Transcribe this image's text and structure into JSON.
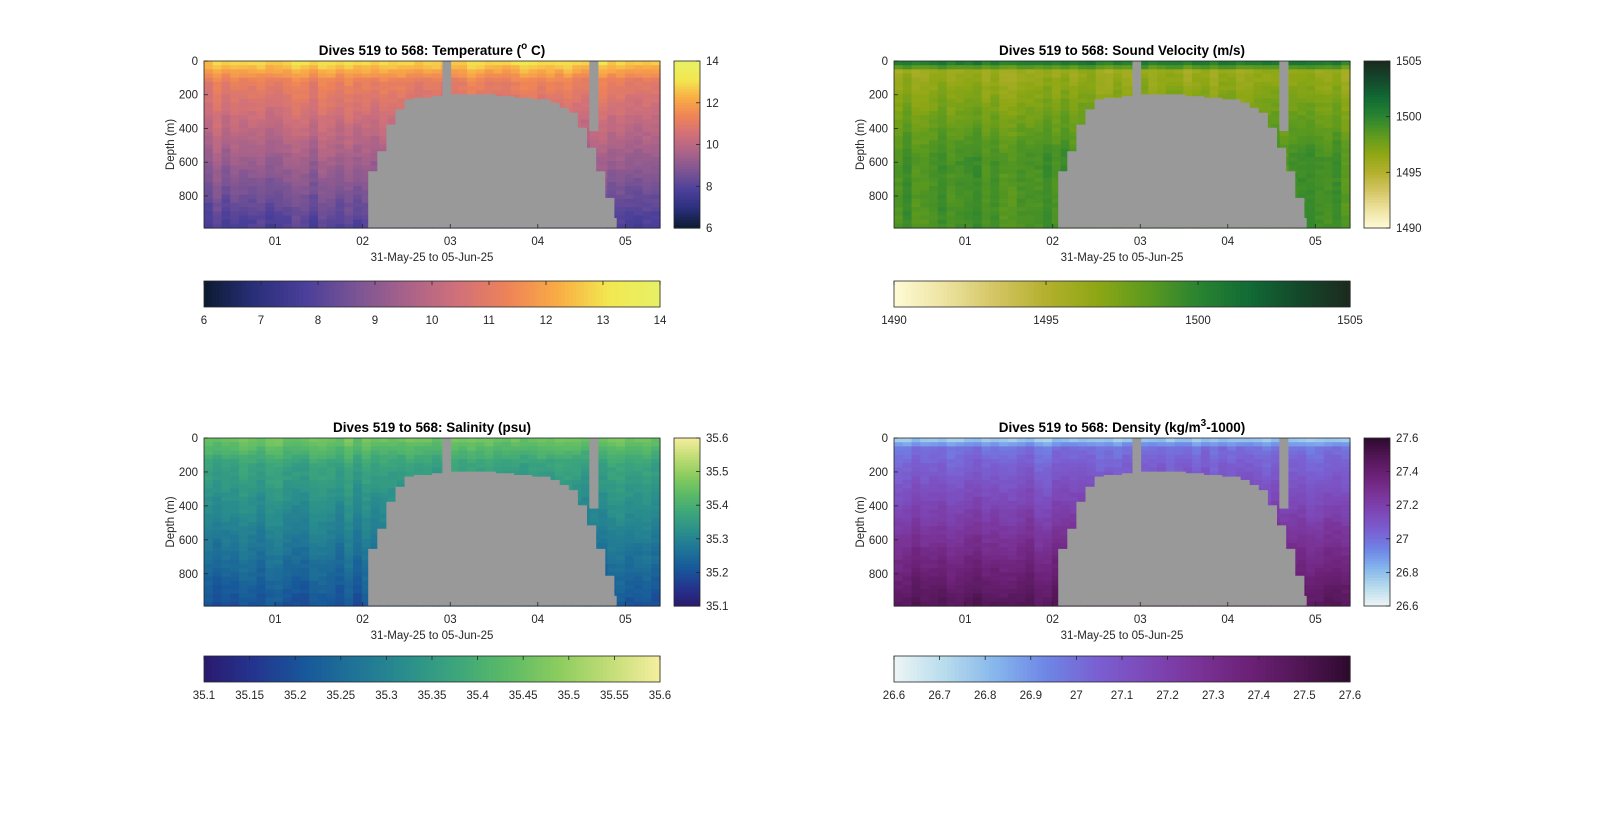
{
  "chart_data": [
    {
      "type": "heatmap",
      "title": "Dives 519 to 568: Temperature (",
      "title_super": "o",
      "title_tail": " C)",
      "xlabel": "31-May-25 to 05-Jun-25",
      "ylabel": "Depth (m)",
      "x_tick_labels": [
        "01",
        "02",
        "03",
        "04",
        "05"
      ],
      "y_tick_labels": [
        "0",
        "200",
        "400",
        "600",
        "800"
      ],
      "ylim": [
        0,
        990
      ],
      "colorbar_ticks": [
        "14",
        "12",
        "10",
        "8",
        "6"
      ],
      "colorbar_range": [
        6,
        14
      ],
      "h_colorbar_ticks": [
        "6",
        "7",
        "8",
        "9",
        "10",
        "11",
        "12",
        "13",
        "14"
      ],
      "colormap": [
        "#0b1a30",
        "#2a2f7a",
        "#4a3f9a",
        "#7a5494",
        "#a8628a",
        "#d0707a",
        "#ee8358",
        "#f9ad45",
        "#f2e850",
        "#e8f066"
      ],
      "surface_value": 13.0,
      "deep_value": 7.8,
      "cline_depth": 120,
      "no_data_color": "#999999"
    },
    {
      "type": "heatmap",
      "title": "Dives 519 to 568: Sound Velocity (m/s)",
      "xlabel": "31-May-25 to 05-Jun-25",
      "ylabel": "Depth (m)",
      "x_tick_labels": [
        "01",
        "02",
        "03",
        "04",
        "05"
      ],
      "y_tick_labels": [
        "0",
        "200",
        "400",
        "600",
        "800"
      ],
      "ylim": [
        0,
        990
      ],
      "colorbar_ticks": [
        "1505",
        "1500",
        "1495",
        "1490"
      ],
      "colorbar_range": [
        1490,
        1505
      ],
      "h_colorbar_ticks": [
        "1490",
        "1495",
        "1500",
        "1505"
      ],
      "colormap": [
        "#fefbd6",
        "#ede3a0",
        "#d4c563",
        "#b3b02e",
        "#8ea714",
        "#5c9a1f",
        "#2a8431",
        "#116b34",
        "#14482b",
        "#1b2a1e"
      ],
      "surface_value": 1501.5,
      "deep_value": 1499.0,
      "mid_value": 1496.0,
      "cline_depth": 60,
      "no_data_color": "#999999"
    },
    {
      "type": "heatmap",
      "title": "Dives 519 to 568: Salinity (psu)",
      "xlabel": "31-May-25 to 05-Jun-25",
      "ylabel": "Depth (m)",
      "x_tick_labels": [
        "01",
        "02",
        "03",
        "04",
        "05"
      ],
      "y_tick_labels": [
        "0",
        "200",
        "400",
        "600",
        "800"
      ],
      "ylim": [
        0,
        990
      ],
      "colorbar_ticks": [
        "35.6",
        "35.5",
        "35.4",
        "35.3",
        "35.2",
        "35.1"
      ],
      "colorbar_range": [
        35.1,
        35.6
      ],
      "h_colorbar_ticks": [
        "35.1",
        "35.15",
        "35.2",
        "35.25",
        "35.3",
        "35.35",
        "35.4",
        "35.45",
        "35.5",
        "35.55",
        "35.6"
      ],
      "colormap": [
        "#2a1a6e",
        "#24358f",
        "#17589a",
        "#1f7497",
        "#2a8f8c",
        "#3da67b",
        "#5cbb66",
        "#8ccc5f",
        "#c2dd76",
        "#f6ee9e"
      ],
      "surface_value": 35.46,
      "deep_value": 35.2,
      "cline_depth": 150,
      "no_data_color": "#999999"
    },
    {
      "type": "heatmap",
      "title": "Dives 519 to 568: Density (kg/m",
      "title_super": "3",
      "title_tail": "-1000)",
      "xlabel": "31-May-25 to 05-Jun-25",
      "ylabel": "Depth (m)",
      "x_tick_labels": [
        "01",
        "02",
        "03",
        "04",
        "05"
      ],
      "y_tick_labels": [
        "0",
        "200",
        "400",
        "600",
        "800"
      ],
      "ylim": [
        0,
        990
      ],
      "colorbar_ticks": [
        "27.6",
        "27.4",
        "27.2",
        "27",
        "26.8",
        "26.6"
      ],
      "colorbar_range": [
        26.6,
        27.6
      ],
      "h_colorbar_ticks": [
        "26.6",
        "26.7",
        "26.8",
        "26.9",
        "27",
        "27.1",
        "27.2",
        "27.3",
        "27.4",
        "27.5",
        "27.6"
      ],
      "colormap": [
        "#edf5f6",
        "#b8dcec",
        "#86b6ec",
        "#6e86e6",
        "#7a60d2",
        "#7d48b8",
        "#7a3397",
        "#6c2177",
        "#521655",
        "#2d0a2e"
      ],
      "surface_value": 26.72,
      "deep_value": 27.48,
      "cline_depth": 60,
      "no_data_color": "#999999"
    }
  ]
}
